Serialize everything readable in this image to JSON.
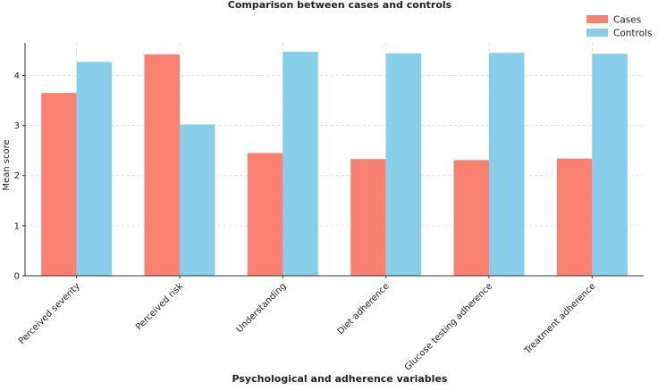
{
  "chart_data": {
    "type": "bar",
    "title": "Comparison between cases and controls",
    "xlabel": "Psychological and adherence variables",
    "ylabel": "Mean score",
    "categories": [
      "Perceived severity",
      "Perceived risk",
      "Understanding",
      "Diet adherence",
      "Glucose testing adherence",
      "Treatment adherence"
    ],
    "series": [
      {
        "name": "Cases",
        "color": "#FA8072",
        "values": [
          3.65,
          4.42,
          2.45,
          2.33,
          2.31,
          2.34
        ]
      },
      {
        "name": "Controls",
        "color": "#87CEEB",
        "values": [
          4.27,
          3.02,
          4.47,
          4.44,
          4.45,
          4.43
        ]
      }
    ],
    "yticks": [
      0,
      1,
      2,
      3,
      4
    ],
    "ylim": [
      0,
      4.65
    ],
    "grid": true,
    "legend_position": "top-right"
  }
}
